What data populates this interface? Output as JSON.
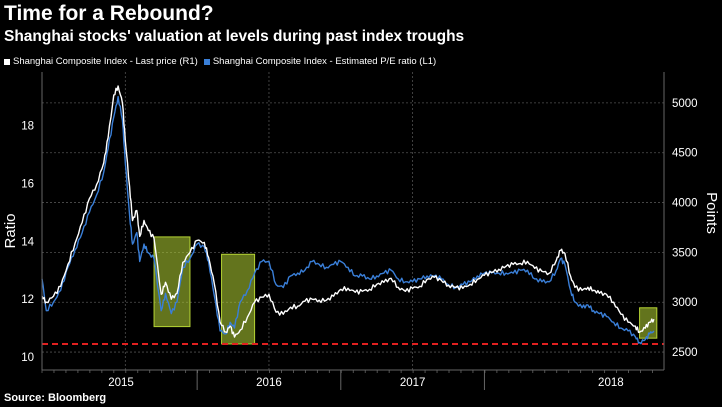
{
  "title": "Time for a Rebound?",
  "subtitle": "Shanghai stocks' valuation at levels during past index troughs",
  "source": "Source: Bloomberg",
  "colors": {
    "pe": "#3a7fd8",
    "price": "#ffffff",
    "threshold": "#e02020",
    "highlight": "#b5d334",
    "grid": "#505050",
    "background": "#000000"
  },
  "chart_data": {
    "type": "line",
    "x_axis": {
      "labels": [
        "2015",
        "2016",
        "2017",
        "2018"
      ],
      "range": [
        2014.42,
        2018.75
      ]
    },
    "left_axis": {
      "label": "Ratio",
      "ticks": [
        10,
        12,
        14,
        16,
        18
      ],
      "range": [
        9.55,
        19.85
      ]
    },
    "right_axis": {
      "label": "Points",
      "ticks": [
        2500,
        3000,
        3500,
        4000,
        4500,
        5000
      ],
      "tick_labels": [
        "2500",
        "3000",
        "3500",
        "4000",
        "4500",
        "5000"
      ],
      "range": [
        2320,
        5310
      ]
    },
    "threshold": {
      "axis": "left",
      "value": 10.45
    },
    "series": [
      {
        "name": "Shanghai Composite Index - Last price (R1)",
        "axis": "right",
        "points": [
          [
            2014.42,
            3060
          ],
          [
            2014.45,
            3000
          ],
          [
            2014.5,
            3060
          ],
          [
            2014.55,
            3160
          ],
          [
            2014.6,
            3380
          ],
          [
            2014.65,
            3590
          ],
          [
            2014.7,
            3800
          ],
          [
            2014.75,
            4040
          ],
          [
            2014.8,
            4180
          ],
          [
            2014.85,
            4400
          ],
          [
            2014.88,
            4650
          ],
          [
            2014.92,
            5080
          ],
          [
            2014.95,
            5170
          ],
          [
            2014.98,
            5000
          ],
          [
            2015.0,
            4620
          ],
          [
            2015.03,
            4160
          ],
          [
            2015.05,
            3820
          ],
          [
            2015.08,
            3920
          ],
          [
            2015.1,
            3660
          ],
          [
            2015.13,
            3820
          ],
          [
            2015.16,
            3720
          ],
          [
            2015.2,
            3640
          ],
          [
            2015.25,
            3080
          ],
          [
            2015.28,
            3200
          ],
          [
            2015.32,
            3030
          ],
          [
            2015.36,
            3090
          ],
          [
            2015.4,
            3400
          ],
          [
            2015.45,
            3500
          ],
          [
            2015.5,
            3620
          ],
          [
            2015.55,
            3600
          ],
          [
            2015.58,
            3450
          ],
          [
            2015.62,
            3180
          ],
          [
            2015.66,
            2800
          ],
          [
            2015.7,
            2700
          ],
          [
            2015.73,
            2760
          ],
          [
            2015.76,
            2650
          ],
          [
            2015.8,
            2720
          ],
          [
            2015.85,
            2850
          ],
          [
            2015.9,
            3000
          ],
          [
            2015.95,
            3050
          ],
          [
            2016.0,
            3080
          ],
          [
            2016.05,
            2900
          ],
          [
            2016.1,
            2880
          ],
          [
            2016.15,
            2950
          ],
          [
            2016.2,
            2960
          ],
          [
            2016.25,
            3010
          ],
          [
            2016.3,
            3030
          ],
          [
            2016.35,
            3020
          ],
          [
            2016.4,
            3020
          ],
          [
            2016.45,
            3060
          ],
          [
            2016.5,
            3130
          ],
          [
            2016.55,
            3140
          ],
          [
            2016.6,
            3100
          ],
          [
            2016.65,
            3110
          ],
          [
            2016.7,
            3130
          ],
          [
            2016.75,
            3180
          ],
          [
            2016.8,
            3200
          ],
          [
            2016.85,
            3240
          ],
          [
            2016.9,
            3150
          ],
          [
            2016.95,
            3110
          ],
          [
            2017.0,
            3140
          ],
          [
            2017.05,
            3160
          ],
          [
            2017.1,
            3230
          ],
          [
            2017.15,
            3250
          ],
          [
            2017.2,
            3220
          ],
          [
            2017.25,
            3170
          ],
          [
            2017.3,
            3150
          ],
          [
            2017.35,
            3140
          ],
          [
            2017.4,
            3180
          ],
          [
            2017.45,
            3230
          ],
          [
            2017.5,
            3270
          ],
          [
            2017.55,
            3300
          ],
          [
            2017.6,
            3330
          ],
          [
            2017.65,
            3360
          ],
          [
            2017.7,
            3380
          ],
          [
            2017.75,
            3390
          ],
          [
            2017.8,
            3410
          ],
          [
            2017.85,
            3340
          ],
          [
            2017.9,
            3310
          ],
          [
            2017.95,
            3290
          ],
          [
            2018.0,
            3420
          ],
          [
            2018.03,
            3520
          ],
          [
            2018.06,
            3490
          ],
          [
            2018.1,
            3260
          ],
          [
            2018.13,
            3150
          ],
          [
            2018.18,
            3120
          ],
          [
            2018.22,
            3150
          ],
          [
            2018.26,
            3120
          ],
          [
            2018.3,
            3090
          ],
          [
            2018.35,
            3080
          ],
          [
            2018.4,
            3000
          ],
          [
            2018.45,
            2880
          ],
          [
            2018.5,
            2800
          ],
          [
            2018.55,
            2760
          ],
          [
            2018.58,
            2700
          ],
          [
            2018.62,
            2740
          ],
          [
            2018.65,
            2800
          ],
          [
            2018.68,
            2830
          ]
        ]
      },
      {
        "name": "Shanghai Composite Index - Estimated P/E ratio (L1)",
        "axis": "left",
        "points": [
          [
            2014.42,
            12.7
          ],
          [
            2014.45,
            11.6
          ],
          [
            2014.5,
            11.9
          ],
          [
            2014.55,
            12.3
          ],
          [
            2014.6,
            13.1
          ],
          [
            2014.65,
            13.7
          ],
          [
            2014.7,
            14.3
          ],
          [
            2014.75,
            15.0
          ],
          [
            2014.8,
            15.6
          ],
          [
            2014.85,
            16.4
          ],
          [
            2014.88,
            17.2
          ],
          [
            2014.92,
            18.3
          ],
          [
            2014.95,
            19.0
          ],
          [
            2014.98,
            18.2
          ],
          [
            2015.0,
            16.7
          ],
          [
            2015.03,
            14.9
          ],
          [
            2015.05,
            13.9
          ],
          [
            2015.08,
            14.3
          ],
          [
            2015.1,
            13.3
          ],
          [
            2015.13,
            13.9
          ],
          [
            2015.16,
            13.6
          ],
          [
            2015.2,
            13.4
          ],
          [
            2015.25,
            11.6
          ],
          [
            2015.28,
            12.2
          ],
          [
            2015.32,
            11.5
          ],
          [
            2015.36,
            11.9
          ],
          [
            2015.4,
            13.1
          ],
          [
            2015.45,
            13.4
          ],
          [
            2015.5,
            13.9
          ],
          [
            2015.55,
            13.8
          ],
          [
            2015.58,
            13.3
          ],
          [
            2015.62,
            12.1
          ],
          [
            2015.66,
            10.9
          ],
          [
            2015.7,
            10.8
          ],
          [
            2015.73,
            11.2
          ],
          [
            2015.76,
            11.0
          ],
          [
            2015.8,
            11.9
          ],
          [
            2015.85,
            12.3
          ],
          [
            2015.9,
            12.9
          ],
          [
            2015.95,
            13.3
          ],
          [
            2016.0,
            13.3
          ],
          [
            2016.05,
            12.5
          ],
          [
            2016.1,
            12.4
          ],
          [
            2016.15,
            12.8
          ],
          [
            2016.2,
            12.9
          ],
          [
            2016.25,
            13.0
          ],
          [
            2016.3,
            13.3
          ],
          [
            2016.35,
            13.2
          ],
          [
            2016.4,
            13.1
          ],
          [
            2016.45,
            13.2
          ],
          [
            2016.5,
            13.3
          ],
          [
            2016.55,
            13.1
          ],
          [
            2016.6,
            12.8
          ],
          [
            2016.65,
            12.8
          ],
          [
            2016.7,
            12.7
          ],
          [
            2016.75,
            12.8
          ],
          [
            2016.8,
            12.9
          ],
          [
            2016.85,
            13.0
          ],
          [
            2016.9,
            12.7
          ],
          [
            2016.95,
            12.6
          ],
          [
            2017.0,
            12.6
          ],
          [
            2017.05,
            12.7
          ],
          [
            2017.1,
            12.8
          ],
          [
            2017.15,
            12.8
          ],
          [
            2017.2,
            12.7
          ],
          [
            2017.25,
            12.5
          ],
          [
            2017.3,
            12.4
          ],
          [
            2017.35,
            12.5
          ],
          [
            2017.4,
            12.6
          ],
          [
            2017.45,
            12.8
          ],
          [
            2017.5,
            12.9
          ],
          [
            2017.55,
            12.9
          ],
          [
            2017.6,
            12.9
          ],
          [
            2017.65,
            12.9
          ],
          [
            2017.7,
            12.9
          ],
          [
            2017.75,
            13.0
          ],
          [
            2017.8,
            13.0
          ],
          [
            2017.85,
            12.7
          ],
          [
            2017.9,
            12.6
          ],
          [
            2017.95,
            12.6
          ],
          [
            2018.0,
            13.0
          ],
          [
            2018.03,
            13.4
          ],
          [
            2018.06,
            13.2
          ],
          [
            2018.1,
            12.3
          ],
          [
            2018.13,
            11.9
          ],
          [
            2018.18,
            11.7
          ],
          [
            2018.22,
            11.8
          ],
          [
            2018.26,
            11.6
          ],
          [
            2018.3,
            11.5
          ],
          [
            2018.35,
            11.4
          ],
          [
            2018.4,
            11.2
          ],
          [
            2018.45,
            11.0
          ],
          [
            2018.5,
            10.9
          ],
          [
            2018.55,
            10.7
          ],
          [
            2018.58,
            10.5
          ],
          [
            2018.62,
            10.6
          ],
          [
            2018.65,
            10.8
          ],
          [
            2018.68,
            10.9
          ]
        ]
      }
    ],
    "highlights": [
      {
        "axis": "left",
        "x_range": [
          2015.2,
          2015.45
        ],
        "y_range": [
          11.05,
          14.15
        ]
      },
      {
        "axis": "left",
        "x_range": [
          2015.67,
          2015.9
        ],
        "y_range": [
          10.45,
          13.55
        ]
      },
      {
        "axis": "left",
        "x_range": [
          2018.58,
          2018.7
        ],
        "y_range": [
          10.65,
          11.7
        ]
      }
    ]
  }
}
